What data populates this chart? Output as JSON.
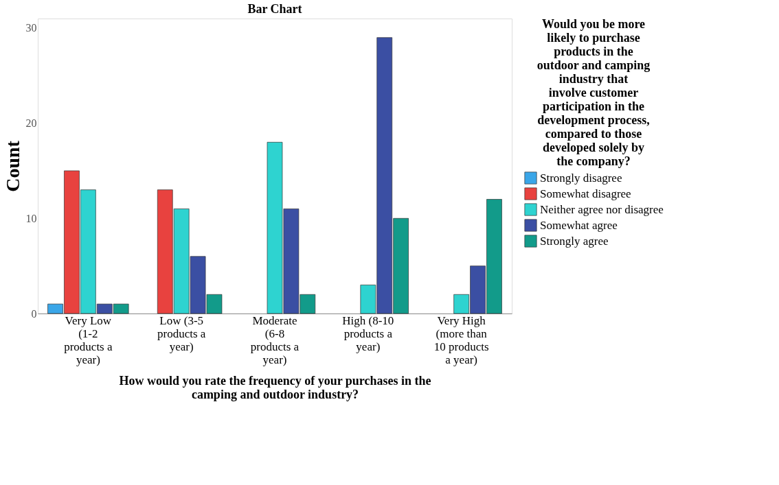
{
  "chart_data": {
    "type": "bar",
    "title": "Bar Chart",
    "xlabel": "How would you rate the frequency of your purchases in the camping and outdoor industry?",
    "ylabel": "Count",
    "legend_title": "Would you be more likely to purchase products in the outdoor and camping industry that involve customer participation in the development process, compared to those developed solely by the company?",
    "categories": [
      "Very Low (1-2 products a year)",
      "Low (3-5 products a year)",
      "Moderate (6-8 products a year)",
      "High (8-10 products a year)",
      "Very High (more than 10 products a year)"
    ],
    "series": [
      {
        "name": "Strongly disagree",
        "color": "#3aa6e8",
        "values": [
          1,
          null,
          null,
          null,
          null
        ]
      },
      {
        "name": "Somewhat disagree",
        "color": "#e8423f",
        "values": [
          15,
          13,
          null,
          null,
          null
        ]
      },
      {
        "name": "Neither agree nor disagree",
        "color": "#2ed3d0",
        "values": [
          13,
          11,
          18,
          3,
          2
        ]
      },
      {
        "name": "Somewhat agree",
        "color": "#3b4fa3",
        "values": [
          1,
          6,
          11,
          29,
          5
        ]
      },
      {
        "name": "Strongly agree",
        "color": "#129b8a",
        "values": [
          1,
          2,
          2,
          10,
          12
        ]
      }
    ],
    "ylim": [
      0,
      31
    ],
    "yticks": [
      0,
      10,
      20,
      30
    ],
    "grid": false,
    "legend": "right"
  }
}
